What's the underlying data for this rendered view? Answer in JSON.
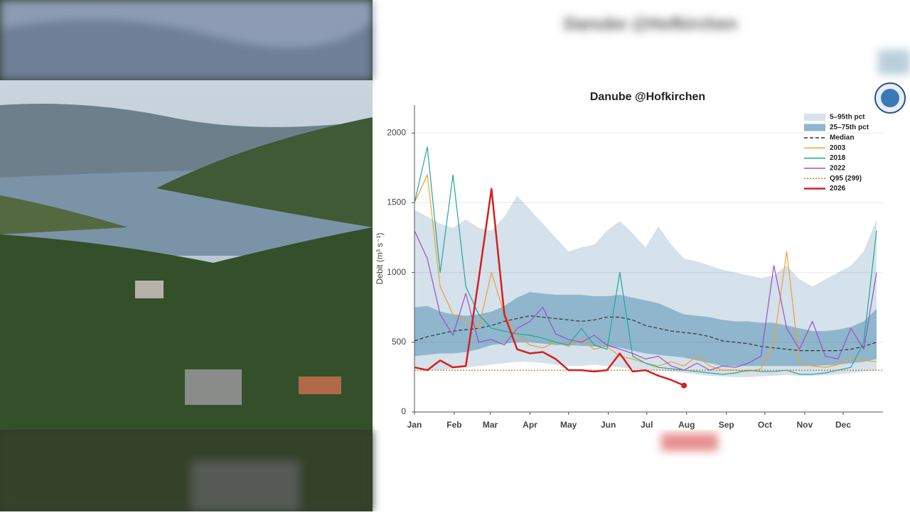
{
  "chart_data": {
    "type": "line",
    "title": "Danube @Hofkirchen",
    "y_label": "Debit (m³ s⁻¹)",
    "x": [
      1,
      11,
      21,
      31,
      41,
      51,
      61,
      71,
      81,
      91,
      101,
      111,
      121,
      131,
      141,
      151,
      161,
      171,
      181,
      191,
      201,
      211,
      221,
      231,
      241,
      251,
      261,
      271,
      281,
      291,
      301,
      311,
      321,
      331,
      341,
      351,
      361
    ],
    "xlim": [
      1,
      366
    ],
    "xticks": [
      {
        "value": 1,
        "label": "Jan"
      },
      {
        "value": 32,
        "label": "Feb"
      },
      {
        "value": 60,
        "label": "Mar"
      },
      {
        "value": 91,
        "label": "Apr"
      },
      {
        "value": 121,
        "label": "May"
      },
      {
        "value": 152,
        "label": "Jun"
      },
      {
        "value": 182,
        "label": "Jul"
      },
      {
        "value": 213,
        "label": "Aug"
      },
      {
        "value": 244,
        "label": "Sep"
      },
      {
        "value": 274,
        "label": "Oct"
      },
      {
        "value": 305,
        "label": "Nov"
      },
      {
        "value": 335,
        "label": "Dec"
      }
    ],
    "ylim": [
      0,
      2200
    ],
    "yticks": [
      0,
      500,
      1000,
      1500,
      2000
    ],
    "grid": true,
    "legend": "top-right",
    "bands": [
      {
        "name": "5–95th pct",
        "color": "#d5e1eb",
        "lower": [
          310,
          300,
          300,
          310,
          320,
          330,
          340,
          350,
          360,
          360,
          350,
          340,
          330,
          330,
          340,
          330,
          320,
          310,
          300,
          300,
          290,
          280,
          270,
          260,
          255,
          250,
          250,
          255,
          260,
          265,
          260,
          260,
          265,
          270,
          280,
          290,
          300
        ],
        "upper": [
          1450,
          1400,
          1350,
          1320,
          1380,
          1320,
          1300,
          1400,
          1550,
          1450,
          1350,
          1250,
          1150,
          1180,
          1200,
          1300,
          1370,
          1280,
          1180,
          1330,
          1200,
          1100,
          1080,
          1050,
          1020,
          1000,
          980,
          960,
          980,
          1050,
          950,
          900,
          950,
          1000,
          1050,
          1150,
          1380
        ]
      },
      {
        "name": "25–75th pct",
        "color": "#8fb6cc",
        "lower": [
          400,
          410,
          420,
          420,
          430,
          450,
          480,
          490,
          500,
          500,
          490,
          480,
          480,
          475,
          470,
          470,
          460,
          440,
          420,
          410,
          400,
          390,
          370,
          350,
          330,
          330,
          330,
          330,
          330,
          330,
          330,
          330,
          335,
          340,
          350,
          360,
          380
        ],
        "upper": [
          750,
          760,
          720,
          700,
          690,
          700,
          720,
          760,
          820,
          860,
          850,
          840,
          840,
          840,
          830,
          830,
          840,
          820,
          800,
          780,
          740,
          700,
          690,
          680,
          660,
          650,
          650,
          640,
          640,
          620,
          600,
          580,
          580,
          590,
          610,
          650,
          740
        ]
      }
    ],
    "series": [
      {
        "name": "Median",
        "color": "#333333",
        "dash": "dashed",
        "values": [
          510,
          540,
          560,
          580,
          590,
          600,
          620,
          650,
          670,
          690,
          680,
          670,
          660,
          650,
          660,
          680,
          680,
          660,
          620,
          600,
          580,
          570,
          560,
          540,
          510,
          500,
          490,
          470,
          460,
          450,
          440,
          440,
          440,
          440,
          450,
          470,
          500
        ]
      },
      {
        "name": "2003",
        "color": "#f0a030",
        "values": [
          1500,
          1700,
          900,
          700,
          650,
          600,
          1000,
          700,
          550,
          480,
          460,
          500,
          470,
          520,
          450,
          470,
          400,
          380,
          350,
          330,
          360,
          330,
          400,
          330,
          300,
          300,
          290,
          310,
          500,
          1150,
          350,
          330,
          320,
          340,
          380,
          370,
          360
        ]
      },
      {
        "name": "2018",
        "color": "#1fa89a",
        "values": [
          1500,
          1900,
          1000,
          1700,
          900,
          700,
          600,
          580,
          560,
          550,
          530,
          500,
          480,
          600,
          480,
          450,
          1000,
          400,
          350,
          320,
          310,
          300,
          290,
          280,
          270,
          280,
          300,
          290,
          290,
          300,
          270,
          270,
          280,
          300,
          320,
          500,
          1300
        ]
      },
      {
        "name": "2022",
        "color": "#9b4fc7",
        "values": [
          1300,
          1100,
          700,
          550,
          850,
          500,
          520,
          480,
          600,
          650,
          750,
          560,
          520,
          500,
          550,
          480,
          450,
          420,
          380,
          400,
          330,
          300,
          350,
          300,
          330,
          320,
          350,
          400,
          1050,
          600,
          450,
          650,
          400,
          380,
          600,
          450,
          1000
        ]
      },
      {
        "name": "Q95 (299)",
        "color": "#c8782a",
        "dash": "dotted",
        "reference": 299
      },
      {
        "name": "2026",
        "color": "#d42020",
        "width": 2.5,
        "end_marker": true,
        "values": [
          320,
          300,
          370,
          320,
          330,
          950,
          1600,
          700,
          450,
          420,
          430,
          380,
          300,
          300,
          290,
          300,
          420,
          290,
          300,
          260,
          230,
          190,
          null,
          null,
          null,
          null,
          null,
          null,
          null,
          null,
          null,
          null,
          null,
          null,
          null,
          null,
          null
        ]
      }
    ]
  }
}
